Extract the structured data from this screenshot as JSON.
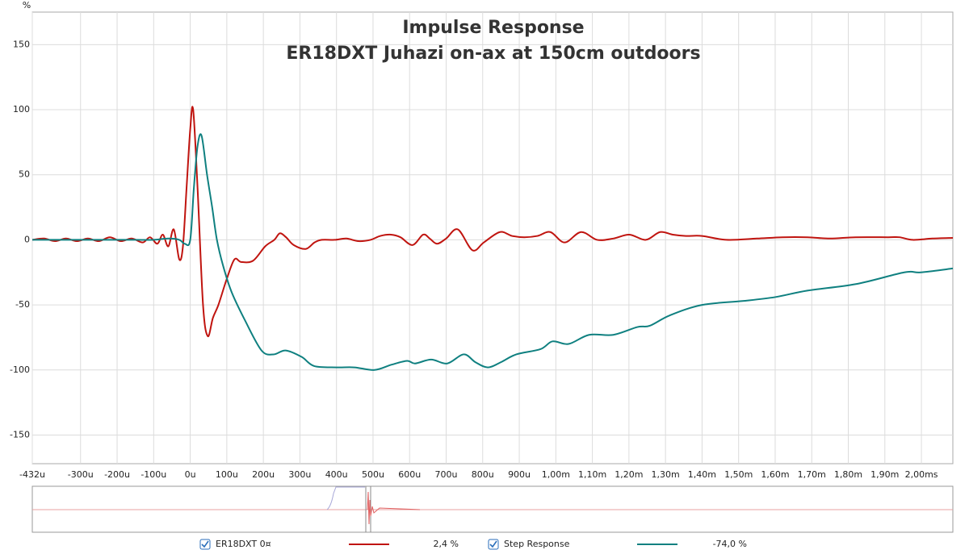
{
  "chart_data": {
    "type": "line",
    "title": "Impulse Response",
    "subtitle": "ER18DXT Juhazi on-ax at 150cm outdoors",
    "y_label": "%",
    "xlim": [
      -432,
      2086
    ],
    "ylim": [
      -172,
      175
    ],
    "yticks": [
      -150,
      -100,
      -50,
      0,
      50,
      100,
      150
    ],
    "xticks": [
      {
        "value": -432,
        "label": "-432u"
      },
      {
        "value": -300,
        "label": "-300u"
      },
      {
        "value": -200,
        "label": "-200u"
      },
      {
        "value": -100,
        "label": "-100u"
      },
      {
        "value": 0,
        "label": "0u"
      },
      {
        "value": 100,
        "label": "100u"
      },
      {
        "value": 200,
        "label": "200u"
      },
      {
        "value": 300,
        "label": "300u"
      },
      {
        "value": 400,
        "label": "400u"
      },
      {
        "value": 500,
        "label": "500u"
      },
      {
        "value": 600,
        "label": "600u"
      },
      {
        "value": 700,
        "label": "700u"
      },
      {
        "value": 800,
        "label": "800u"
      },
      {
        "value": 900,
        "label": "900u"
      },
      {
        "value": 1000,
        "label": "1,00m"
      },
      {
        "value": 1100,
        "label": "1,10m"
      },
      {
        "value": 1200,
        "label": "1,20m"
      },
      {
        "value": 1300,
        "label": "1,30m"
      },
      {
        "value": 1400,
        "label": "1,40m"
      },
      {
        "value": 1500,
        "label": "1,50m"
      },
      {
        "value": 1600,
        "label": "1,60m"
      },
      {
        "value": 1700,
        "label": "1,70m"
      },
      {
        "value": 1800,
        "label": "1,80m"
      },
      {
        "value": 1900,
        "label": "1,90m"
      },
      {
        "value": 2000,
        "label": "2,00ms"
      }
    ],
    "grid": true,
    "series": [
      {
        "name": "ER18DXT 0¤",
        "color": "#c0140f",
        "cursor_value": "2,4 %",
        "x": [
          -432,
          -400,
          -370,
          -340,
          -310,
          -280,
          -250,
          -220,
          -190,
          -160,
          -130,
          -110,
          -90,
          -75,
          -60,
          -45,
          -30,
          -20,
          -10,
          0,
          8,
          20,
          35,
          48,
          62,
          77,
          100,
          121,
          139,
          172,
          205,
          230,
          245,
          262,
          283,
          316,
          340,
          360,
          395,
          427,
          460,
          493,
          520,
          549,
          575,
          608,
          637,
          655,
          675,
          700,
          732,
          772,
          803,
          847,
          880,
          914,
          950,
          985,
          1024,
          1069,
          1113,
          1157,
          1201,
          1246,
          1285,
          1320,
          1356,
          1400,
          1467,
          1550,
          1620,
          1688,
          1750,
          1820,
          1909,
          1940,
          1976,
          2030,
          2086
        ],
        "values": [
          0,
          1,
          -1,
          1,
          -1,
          1,
          -1,
          2,
          -1,
          1,
          -2,
          2,
          -3,
          4,
          -5,
          8,
          -15,
          -5,
          40,
          85,
          100,
          40,
          -50,
          -74,
          -60,
          -50,
          -30,
          -15,
          -17,
          -16,
          -5,
          0,
          5,
          2,
          -4,
          -7,
          -2,
          0,
          0,
          1,
          -1,
          0,
          3,
          4,
          2,
          -4,
          4,
          1,
          -3,
          1,
          8,
          -8,
          -2,
          6,
          3,
          2,
          3,
          6,
          -2,
          6,
          0,
          1,
          4,
          0,
          6,
          4,
          3,
          3,
          0,
          1,
          2,
          2,
          1,
          2,
          2,
          2,
          0,
          1,
          1.5
        ]
      },
      {
        "name": "Step Response",
        "color": "#0f8080",
        "cursor_value": "-74,0 %",
        "x": [
          -432,
          -350,
          -300,
          -250,
          -200,
          -150,
          -100,
          -60,
          -30,
          -15,
          0,
          10,
          20,
          31,
          46,
          60,
          73,
          90,
          113,
          150,
          195,
          228,
          261,
          305,
          339,
          400,
          449,
          504,
          550,
          593,
          615,
          659,
          703,
          748,
          780,
          814,
          850,
          892,
          958,
          991,
          1035,
          1091,
          1157,
          1223,
          1257,
          1312,
          1400,
          1511,
          1600,
          1688,
          1821,
          1953,
          1998,
          2086
        ],
        "values": [
          0,
          0,
          0,
          0,
          0,
          0,
          0,
          1,
          0,
          -3,
          0,
          40,
          72,
          80,
          50,
          25,
          0,
          -20,
          -40,
          -62,
          -85,
          -88,
          -85,
          -90,
          -97,
          -98,
          -98,
          -100,
          -96,
          -93,
          -95,
          -92,
          -95,
          -88,
          -94,
          -98,
          -94,
          -88,
          -84,
          -78,
          -80,
          -73,
          -73,
          -67,
          -66,
          -58,
          -50,
          -47,
          -44,
          -39,
          -34,
          -25,
          -25,
          -22
        ]
      }
    ]
  }
}
